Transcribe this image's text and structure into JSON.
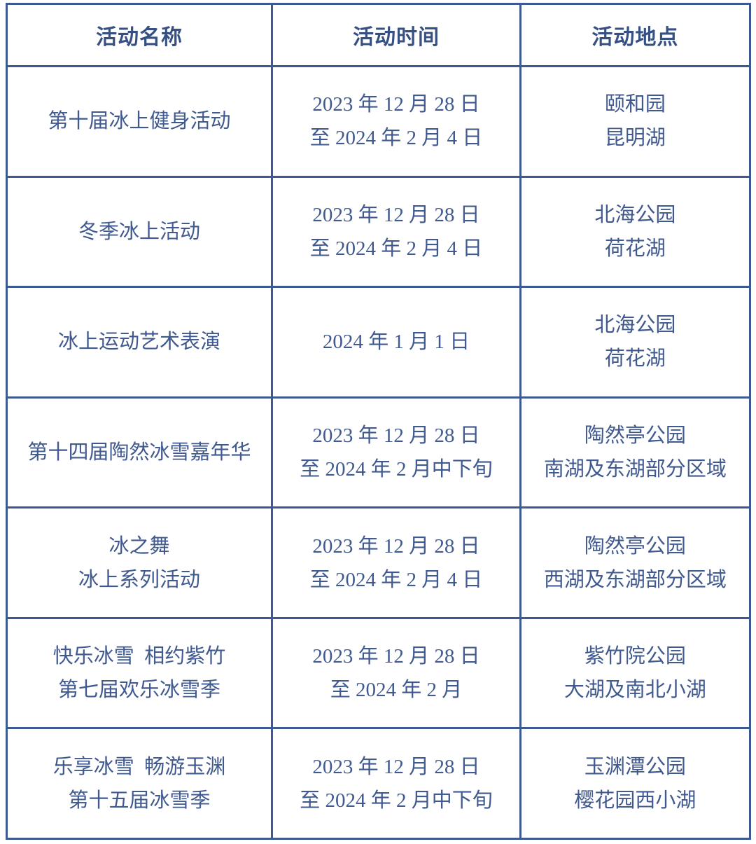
{
  "colors": {
    "background": "#FFFFFF",
    "border": "#3C5A91",
    "header_text": "#375084",
    "body_text": "#40598F"
  },
  "table": {
    "columns": [
      {
        "key": "name",
        "label": "活动名称"
      },
      {
        "key": "time",
        "label": "活动时间"
      },
      {
        "key": "location",
        "label": "活动地点"
      }
    ],
    "rows": [
      {
        "name": [
          "第十届冰上健身活动"
        ],
        "time": [
          "2023 年 12 月 28 日",
          "至 2024 年 2 月 4 日"
        ],
        "location": [
          "颐和园",
          "昆明湖"
        ]
      },
      {
        "name": [
          "冬季冰上活动"
        ],
        "time": [
          "2023 年 12 月 28 日",
          "至 2024 年 2 月 4 日"
        ],
        "location": [
          "北海公园",
          "荷花湖"
        ]
      },
      {
        "name": [
          "冰上运动艺术表演"
        ],
        "time": [
          "2024 年 1 月 1 日"
        ],
        "location": [
          "北海公园",
          "荷花湖"
        ]
      },
      {
        "name": [
          "第十四届陶然冰雪嘉年华"
        ],
        "time": [
          "2023 年 12 月 28 日",
          "至 2024 年 2 月中下旬"
        ],
        "location": [
          "陶然亭公园",
          "南湖及东湖部分区域"
        ]
      },
      {
        "name": [
          "冰之舞",
          "冰上系列活动"
        ],
        "time": [
          "2023 年 12 月 28 日",
          "至 2024 年 2 月 4 日"
        ],
        "location": [
          "陶然亭公园",
          "西湖及东湖部分区域"
        ]
      },
      {
        "name": [
          "快乐冰雪 相约紫竹",
          "第七届欢乐冰雪季"
        ],
        "time": [
          "2023 年 12 月 28 日",
          "至 2024 年 2 月"
        ],
        "location": [
          "紫竹院公园",
          "大湖及南北小湖"
        ]
      },
      {
        "name": [
          "乐享冰雪 畅游玉渊",
          "第十五届冰雪季"
        ],
        "time": [
          "2023 年 12 月 28 日",
          "至 2024 年 2 月中下旬"
        ],
        "location": [
          "玉渊潭公园",
          "樱花园西小湖"
        ]
      }
    ]
  }
}
